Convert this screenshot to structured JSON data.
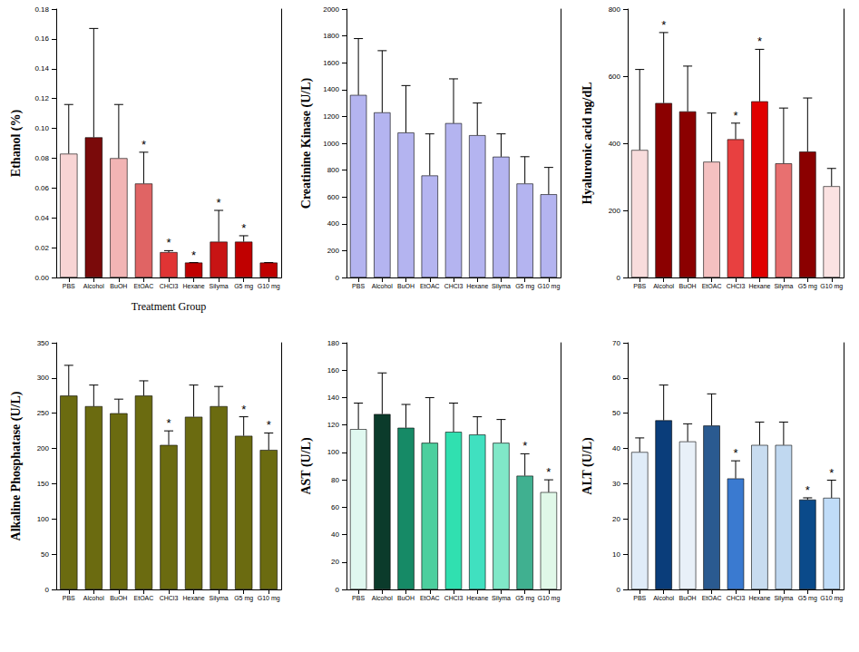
{
  "chart_data": [
    {
      "type": "bar",
      "ylabel": "Ethanol (%)",
      "xlabel": "Treatment Group",
      "categories": [
        "PBS",
        "Alcohol",
        "BuOH",
        "EtOAC",
        "CHCl3",
        "Hexane",
        "Silyma",
        "G5 mg",
        "G10 mg"
      ],
      "values": [
        0.083,
        0.094,
        0.08,
        0.063,
        0.017,
        0.01,
        0.024,
        0.024,
        0.01
      ],
      "errors": [
        0.033,
        0.073,
        0.036,
        0.021,
        0.001,
        0.0,
        0.021,
        0.004,
        0.0
      ],
      "annotations": [
        null,
        null,
        null,
        "*",
        "*",
        "*",
        "*",
        "*",
        null
      ],
      "colors": [
        "#f8d4d4",
        "#7a0a0a",
        "#f2b4b4",
        "#e06464",
        "#e03434",
        "#c00000",
        "#c81414",
        "#c00000",
        "#c00000"
      ],
      "ylim": [
        0,
        0.18
      ],
      "yticks": [
        {
          "value": 0,
          "label": "0.00"
        },
        {
          "value": 0.02,
          "label": "0.02"
        },
        {
          "value": 0.04,
          "label": "0.04"
        },
        {
          "value": 0.06,
          "label": "0.06"
        },
        {
          "value": 0.08,
          "label": "0.08"
        },
        {
          "value": 0.1,
          "label": "0.10"
        },
        {
          "value": 0.12,
          "label": "0.12"
        },
        {
          "value": 0.14,
          "label": "0.14"
        },
        {
          "value": 0.16,
          "label": "0.16"
        },
        {
          "value": 0.18,
          "label": "0.18"
        }
      ],
      "grid": false
    },
    {
      "type": "bar",
      "ylabel": "Creatinine Kinase (U/L)",
      "categories": [
        "PBS",
        "Alcohol",
        "BuOH",
        "EtOAC",
        "CHCl3",
        "Hexane",
        "Silyma",
        "G5 mg",
        "G10 mg"
      ],
      "values": [
        1360,
        1230,
        1080,
        760,
        1150,
        1060,
        900,
        700,
        620
      ],
      "errors": [
        420,
        460,
        350,
        310,
        330,
        240,
        170,
        200,
        200
      ],
      "annotations": [
        null,
        null,
        null,
        null,
        null,
        null,
        null,
        null,
        null
      ],
      "colors": [
        "#b4b4f0",
        "#b4b4f0",
        "#b4b4f0",
        "#b4b4f0",
        "#b4b4f0",
        "#b4b4f0",
        "#b4b4f0",
        "#b4b4f0",
        "#b4b4f0"
      ],
      "ylim": [
        0,
        2000
      ],
      "yticks": [
        0,
        200,
        400,
        600,
        800,
        1000,
        1200,
        1400,
        1600,
        1800,
        2000
      ],
      "grid": false
    },
    {
      "type": "bar",
      "ylabel": "Hyaluronic acid ng/dL",
      "categories": [
        "PBS",
        "Alcohol",
        "BuOH",
        "EtOAC",
        "CHCl3",
        "Hexane",
        "Silyma",
        "G5 mg",
        "G10 mg"
      ],
      "values": [
        380,
        520,
        495,
        345,
        412,
        525,
        340,
        375,
        272
      ],
      "errors": [
        240,
        210,
        135,
        145,
        48,
        155,
        165,
        160,
        53
      ],
      "annotations": [
        null,
        "*",
        null,
        null,
        "*",
        "*",
        null,
        null,
        null
      ],
      "colors": [
        "#f8dcdc",
        "#8b0000",
        "#8b0000",
        "#f4c0c0",
        "#e84040",
        "#e00000",
        "#e87070",
        "#8b0000",
        "#fbe2e2"
      ],
      "ylim": [
        0,
        800
      ],
      "yticks": [
        0,
        200,
        400,
        600,
        800
      ],
      "grid": false
    },
    {
      "type": "bar",
      "ylabel": "Alkaline Phosphatase (U/L)",
      "categories": [
        "PBS",
        "Alcohol",
        "BuOH",
        "EtOAC",
        "CHCl3",
        "Hexane",
        "Silyma",
        "G5 mg",
        "G10 mg"
      ],
      "values": [
        275,
        260,
        250,
        275,
        205,
        245,
        260,
        218,
        198
      ],
      "errors": [
        43,
        30,
        20,
        21,
        20,
        45,
        28,
        27,
        24
      ],
      "annotations": [
        null,
        null,
        null,
        null,
        "*",
        null,
        null,
        "*",
        "*"
      ],
      "colors": [
        "#6b6b10",
        "#6b6b10",
        "#6b6b10",
        "#6b6b10",
        "#6b6b10",
        "#6b6b10",
        "#6b6b10",
        "#6b6b10",
        "#6b6b10"
      ],
      "ylim": [
        0,
        350
      ],
      "yticks": [
        0,
        50,
        100,
        150,
        200,
        250,
        300,
        350
      ],
      "grid": false
    },
    {
      "type": "bar",
      "ylabel": "AST (U/L)",
      "categories": [
        "PBS",
        "Alcohol",
        "BuOH",
        "EtOAC",
        "CHCl3",
        "Hexane",
        "Silyma",
        "G5 mg",
        "G10 mg"
      ],
      "values": [
        117,
        128,
        118,
        107,
        115,
        113,
        107,
        83,
        71
      ],
      "errors": [
        19,
        30,
        17,
        33,
        21,
        13,
        17,
        16,
        9
      ],
      "annotations": [
        null,
        null,
        null,
        null,
        null,
        null,
        null,
        "*",
        "*"
      ],
      "colors": [
        "#e0f8f0",
        "#0b3b2b",
        "#168a66",
        "#4ccf9e",
        "#30e0b0",
        "#40e0c0",
        "#80e8c8",
        "#40b090",
        "#e0f8e8"
      ],
      "ylim": [
        0,
        180
      ],
      "yticks": [
        0,
        20,
        40,
        60,
        80,
        100,
        120,
        140,
        160,
        180
      ],
      "grid": false
    },
    {
      "type": "bar",
      "ylabel": "ALT (U/L)",
      "categories": [
        "PBS",
        "Alcohol",
        "BuOH",
        "EtOAC",
        "CHCl3",
        "Hexane",
        "Silyma",
        "G5 mg",
        "G10 mg"
      ],
      "values": [
        39,
        48,
        42,
        46.5,
        31.5,
        41,
        41,
        25.5,
        26
      ],
      "errors": [
        4,
        10,
        5,
        9,
        5,
        6.5,
        6.5,
        0.5,
        5
      ],
      "annotations": [
        null,
        null,
        null,
        null,
        "*",
        null,
        null,
        "*",
        "*"
      ],
      "colors": [
        "#e0ecf8",
        "#0a3d7a",
        "#e8f0f8",
        "#2a5a90",
        "#3a7ad0",
        "#c8dcf0",
        "#c0d8f0",
        "#0a4a8a",
        "#c0dcf8"
      ],
      "ylim": [
        0,
        70
      ],
      "yticks": [
        0,
        10,
        20,
        30,
        40,
        50,
        60,
        70
      ],
      "grid": false
    }
  ]
}
